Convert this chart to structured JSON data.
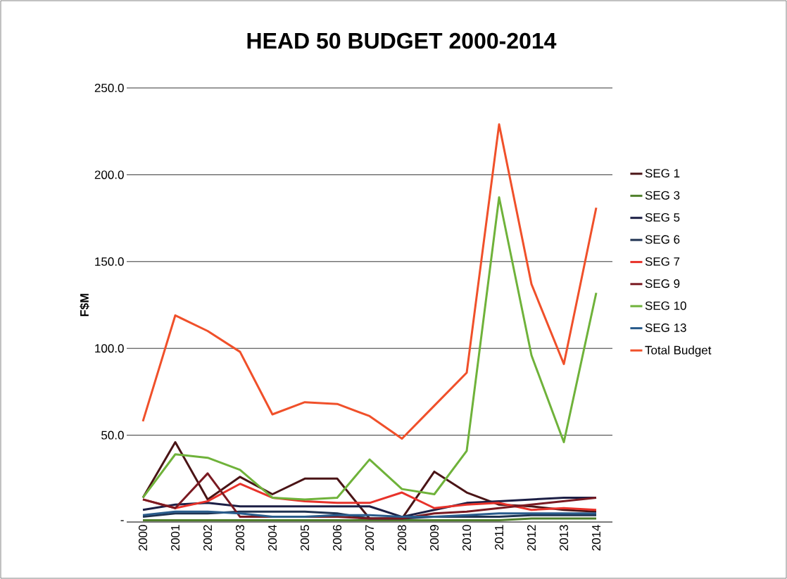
{
  "chart_data": {
    "type": "line",
    "title": "HEAD 50 BUDGET 2000-2014",
    "ylabel": "F$M",
    "categories": [
      "2000",
      "2001",
      "2002",
      "2003",
      "2004",
      "2005",
      "2006",
      "2007",
      "2008",
      "2009",
      "2010",
      "2011",
      "2012",
      "2013",
      "2014"
    ],
    "series": [
      {
        "name": "SEG 1",
        "color": "#4a1416",
        "values": [
          14,
          46,
          13,
          26,
          16,
          25,
          25,
          2,
          2,
          29,
          17,
          10,
          9,
          7,
          6
        ]
      },
      {
        "name": "SEG 3",
        "color": "#4f7f2a",
        "values": [
          1,
          1,
          1,
          1,
          1,
          1,
          1,
          1,
          1,
          1,
          1,
          1,
          2,
          2,
          2
        ]
      },
      {
        "name": "SEG 5",
        "color": "#1c1f45",
        "values": [
          7,
          10,
          11,
          9,
          9,
          9,
          9,
          9,
          3,
          7,
          11,
          12,
          13,
          14,
          14
        ]
      },
      {
        "name": "SEG 6",
        "color": "#1f3352",
        "values": [
          3,
          5,
          5,
          6,
          6,
          6,
          5,
          2,
          2,
          3,
          3,
          3,
          4,
          4,
          4
        ]
      },
      {
        "name": "SEG 7",
        "color": "#e8322a",
        "values": [
          13,
          8,
          12,
          22,
          14,
          12,
          11,
          11,
          17,
          8,
          10,
          11,
          7,
          8,
          7
        ]
      },
      {
        "name": "SEG 9",
        "color": "#7a1a22",
        "values": [
          13,
          8,
          28,
          3,
          3,
          3,
          3,
          2,
          2,
          5,
          6,
          8,
          10,
          12,
          14
        ]
      },
      {
        "name": "SEG 10",
        "color": "#6fb23a",
        "values": [
          14,
          39,
          37,
          30,
          14,
          13,
          14,
          36,
          19,
          16,
          41,
          187,
          96,
          46,
          132
        ]
      },
      {
        "name": "SEG 13",
        "color": "#2a5c8c",
        "values": [
          4,
          6,
          6,
          5,
          3,
          3,
          4,
          4,
          3,
          3,
          4,
          5,
          5,
          5,
          5
        ]
      },
      {
        "name": "Total Budget",
        "color": "#f0502a",
        "values": [
          58,
          119,
          110,
          98,
          62,
          69,
          68,
          61,
          48,
          67,
          86,
          229,
          137,
          91,
          181
        ]
      }
    ],
    "ylim": [
      0,
      250
    ],
    "yticks": [
      {
        "value": 0,
        "label": "-"
      },
      {
        "value": 50,
        "label": "50.0"
      },
      {
        "value": 100,
        "label": "100.0"
      },
      {
        "value": 150,
        "label": "150.0"
      },
      {
        "value": 200,
        "label": "200.0"
      },
      {
        "value": 250,
        "label": "250.0"
      }
    ],
    "grid": "y",
    "legend": "right",
    "marker": "none",
    "line_style": "solid"
  }
}
